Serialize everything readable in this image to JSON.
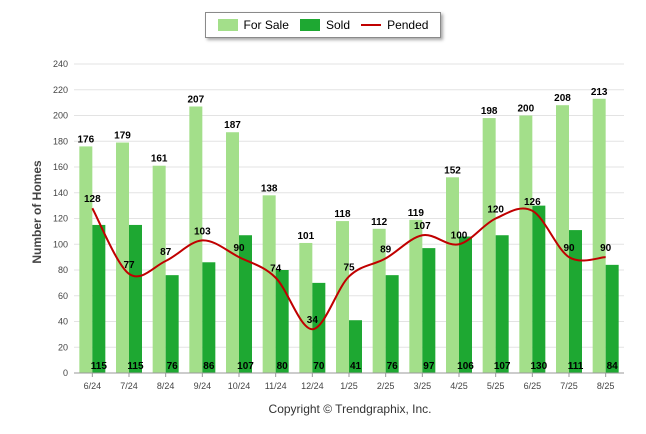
{
  "chart_data": {
    "type": "bar",
    "categories": [
      "6/24",
      "7/24",
      "8/24",
      "9/24",
      "10/24",
      "11/24",
      "12/24",
      "1/25",
      "2/25",
      "3/25",
      "4/25",
      "5/25",
      "6/25",
      "7/25",
      "8/25"
    ],
    "series": [
      {
        "name": "For Sale",
        "type": "bar",
        "color": "#a3df8a",
        "values": [
          176,
          179,
          161,
          207,
          187,
          138,
          101,
          118,
          112,
          119,
          152,
          198,
          200,
          208,
          213
        ]
      },
      {
        "name": "Sold",
        "type": "bar",
        "color": "#1ea832",
        "values": [
          115,
          115,
          76,
          86,
          107,
          80,
          70,
          41,
          76,
          97,
          106,
          107,
          130,
          111,
          84
        ]
      },
      {
        "name": "Pended",
        "type": "line",
        "color": "#c00000",
        "values": [
          128,
          77,
          87,
          103,
          90,
          74,
          34,
          75,
          89,
          107,
          100,
          120,
          126,
          90,
          90
        ]
      }
    ],
    "ylabel": "Number of Homes",
    "xlabel": "",
    "ylim": [
      0,
      240
    ],
    "yticks": [
      0,
      20,
      40,
      60,
      80,
      100,
      120,
      140,
      160,
      180,
      200,
      220,
      240
    ],
    "grid": true,
    "legend_position": "top-center"
  },
  "footer": "Copyright © Trendgraphix, Inc."
}
